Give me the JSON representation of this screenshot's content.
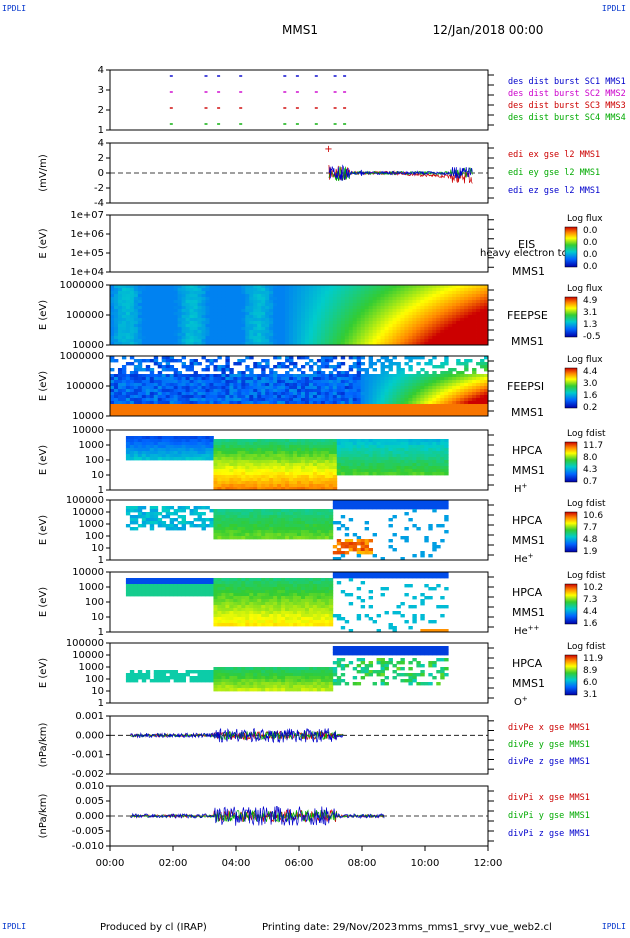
{
  "corner_labels": [
    "IPDLI",
    "IPDLI",
    "IPDLI",
    "IPDLI"
  ],
  "header": {
    "spacecraft": "MMS1",
    "date": "12/Jan/2018 00:00"
  },
  "footer": {
    "produced_by": "Produced by cl (IRAP)",
    "printing_date": "Printing date: 29/Nov/2023",
    "script_name": "mms_mms1_srvy_vue_web2.cl"
  },
  "chart_data": {
    "type": "multi-panel time series",
    "x_ticks": [
      "00:00",
      "02:00",
      "04:00",
      "06:00",
      "08:00",
      "10:00",
      "12:00"
    ],
    "panels": [
      {
        "id": "des-dist",
        "type": "scatter",
        "ylabel": "",
        "yticks": [
          "4",
          "3",
          "2",
          "1"
        ],
        "legend": [
          {
            "text": "des dist burst SC1 MMS1",
            "color": "#0000cc"
          },
          {
            "text": "des dist burst SC2 MMS2",
            "color": "#cc00cc"
          },
          {
            "text": "des dist burst SC3 MMS3",
            "color": "#cc0000"
          },
          {
            "text": "des dist burst SC4 MMS4",
            "color": "#00aa00"
          }
        ],
        "burst_hours": [
          1.9,
          3.0,
          3.4,
          4.1,
          5.5,
          5.9,
          6.5,
          7.1,
          7.4
        ]
      },
      {
        "id": "edi-e",
        "type": "line",
        "ylabel": "(mV/m)",
        "yticks": [
          "4",
          "2",
          "0",
          "-2",
          "-4"
        ],
        "legend": [
          {
            "text": "edi ex gse l2 MMS1",
            "color": "#cc0000"
          },
          {
            "text": "edi ey gse l2 MMS1",
            "color": "#00aa00"
          },
          {
            "text": "edi ez gse l2 MMS1",
            "color": "#0000cc"
          }
        ]
      },
      {
        "id": "eis",
        "type": "heatmap",
        "ylabel": "E (eV)",
        "yticks": [
          "1e+07",
          "1e+06",
          "1e+05",
          "1e+04"
        ],
        "labels": [
          "EIS",
          "MMS1"
        ],
        "overlay_text": "heavy electron to",
        "colorbar": {
          "title": "Log flux",
          "ticks": [
            "0.0",
            "0.0",
            "0.0",
            "0.0"
          ]
        }
      },
      {
        "id": "feepse",
        "type": "heatmap",
        "ylabel": "E (eV)",
        "yticks": [
          "1000000",
          "100000",
          "10000"
        ],
        "labels": [
          "FEEPSE",
          "MMS1"
        ],
        "colorbar": {
          "title": "Log flux",
          "ticks": [
            "4.9",
            "3.1",
            "1.3",
            "-0.5"
          ]
        }
      },
      {
        "id": "feepsi",
        "type": "heatmap",
        "ylabel": "E (eV)",
        "yticks": [
          "1000000",
          "100000",
          "10000"
        ],
        "labels": [
          "FEEPSI",
          "MMS1"
        ],
        "colorbar": {
          "title": "Log flux",
          "ticks": [
            "4.4",
            "3.0",
            "1.6",
            "0.2"
          ]
        }
      },
      {
        "id": "hpca-h",
        "type": "heatmap",
        "ylabel": "E (eV)",
        "yticks": [
          "10000",
          "1000",
          "100",
          "10",
          "1"
        ],
        "labels": [
          "HPCA",
          "MMS1",
          "H",
          "+"
        ],
        "colorbar": {
          "title": "Log fdist",
          "ticks": [
            "11.7",
            "8.0",
            "4.3",
            "0.7"
          ]
        }
      },
      {
        "id": "hpca-he",
        "type": "heatmap",
        "ylabel": "E (eV)",
        "yticks": [
          "100000",
          "10000",
          "1000",
          "100",
          "10",
          "1"
        ],
        "labels": [
          "HPCA",
          "MMS1",
          "He",
          "+"
        ],
        "colorbar": {
          "title": "Log fdist",
          "ticks": [
            "10.6",
            "7.7",
            "4.8",
            "1.9"
          ]
        }
      },
      {
        "id": "hpca-hepp",
        "type": "heatmap",
        "ylabel": "E (eV)",
        "yticks": [
          "10000",
          "1000",
          "100",
          "10",
          "1"
        ],
        "labels": [
          "HPCA",
          "MMS1",
          "He",
          "++"
        ],
        "colorbar": {
          "title": "Log fdist",
          "ticks": [
            "10.2",
            "7.3",
            "4.4",
            "1.6"
          ]
        }
      },
      {
        "id": "hpca-o",
        "type": "heatmap",
        "ylabel": "E (eV)",
        "yticks": [
          "100000",
          "10000",
          "1000",
          "100",
          "10",
          "1"
        ],
        "labels": [
          "HPCA",
          "MMS1",
          "O",
          "+"
        ],
        "colorbar": {
          "title": "Log fdist",
          "ticks": [
            "11.9",
            "8.9",
            "6.0",
            "3.1"
          ]
        }
      },
      {
        "id": "divpe",
        "type": "line",
        "ylabel": "(nPa/km)",
        "yticks": [
          "0.001",
          "0.000",
          "-0.001",
          "-0.002"
        ],
        "legend": [
          {
            "text": "divPe x gse MMS1",
            "color": "#cc0000"
          },
          {
            "text": "divPe y gse MMS1",
            "color": "#00aa00"
          },
          {
            "text": "divPe z gse MMS1",
            "color": "#0000cc"
          }
        ]
      },
      {
        "id": "divpi",
        "type": "line",
        "ylabel": "(nPa/km)",
        "yticks": [
          "0.010",
          "0.005",
          "0.000",
          "-0.005",
          "-0.010"
        ],
        "legend": [
          {
            "text": "divPi x gse MMS1",
            "color": "#cc0000"
          },
          {
            "text": "divPi y gse MMS1",
            "color": "#00aa00"
          },
          {
            "text": "divPi z gse MMS1",
            "color": "#0000cc"
          }
        ]
      }
    ]
  }
}
